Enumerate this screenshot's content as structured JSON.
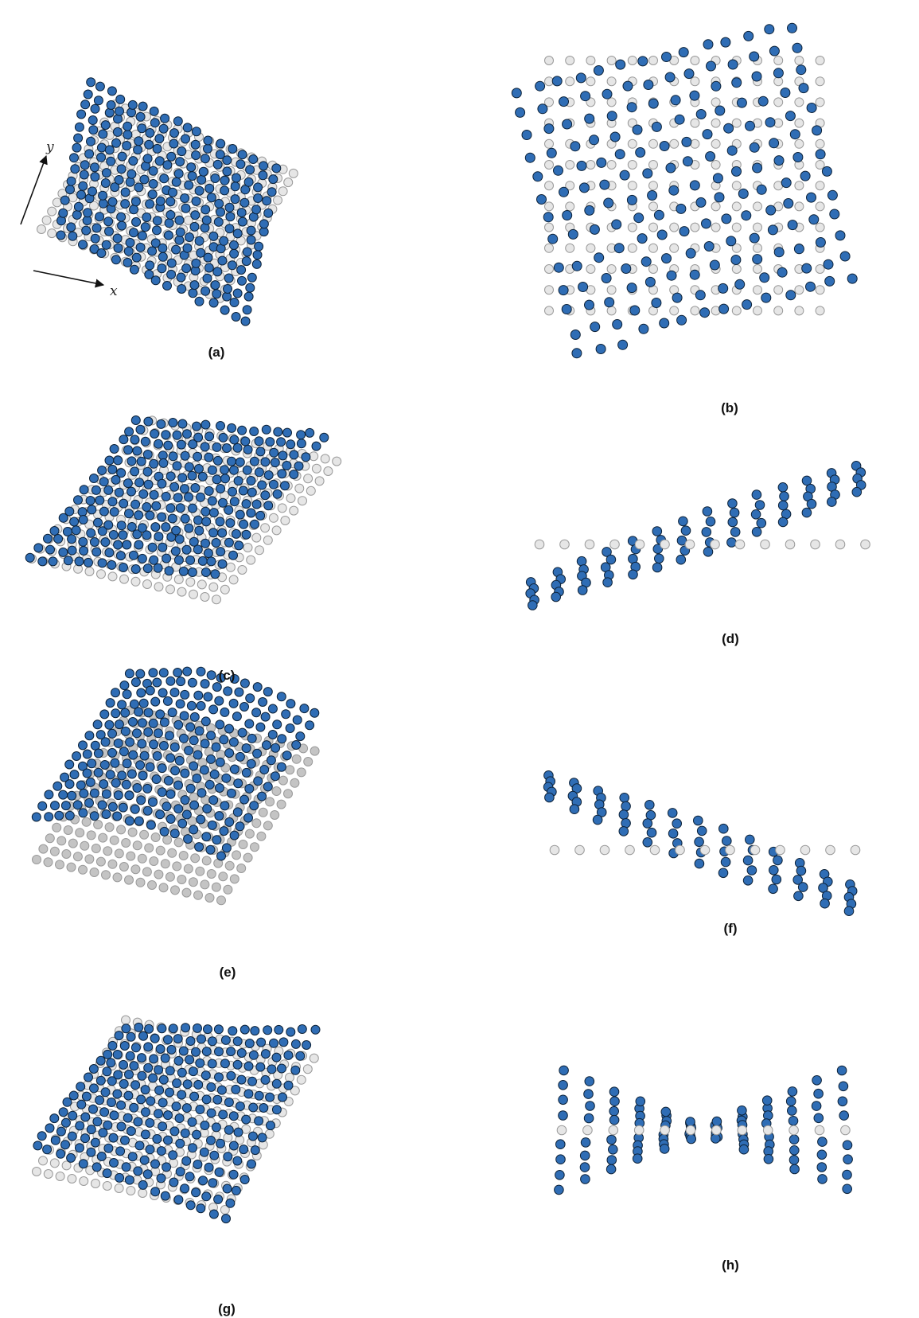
{
  "figure": {
    "panels": [
      {
        "id": "a",
        "label": "(a)"
      },
      {
        "id": "b",
        "label": "(b)"
      },
      {
        "id": "c",
        "label": "(c)"
      },
      {
        "id": "d",
        "label": "(d)"
      },
      {
        "id": "e",
        "label": "(e)"
      },
      {
        "id": "f",
        "label": "(f)"
      },
      {
        "id": "g",
        "label": "(g)"
      },
      {
        "id": "h",
        "label": "(h)"
      }
    ],
    "axes": {
      "x_label": "x",
      "y_label": "y"
    },
    "colors": {
      "deformed_atom": "#2f6db5",
      "deformed_stroke": "#0d2238",
      "reference_atom": "#e6e6e6",
      "reference_stroke": "#9a9a9a",
      "reference_atom_dark": "#c4c4c4",
      "text": "#111111"
    }
  }
}
